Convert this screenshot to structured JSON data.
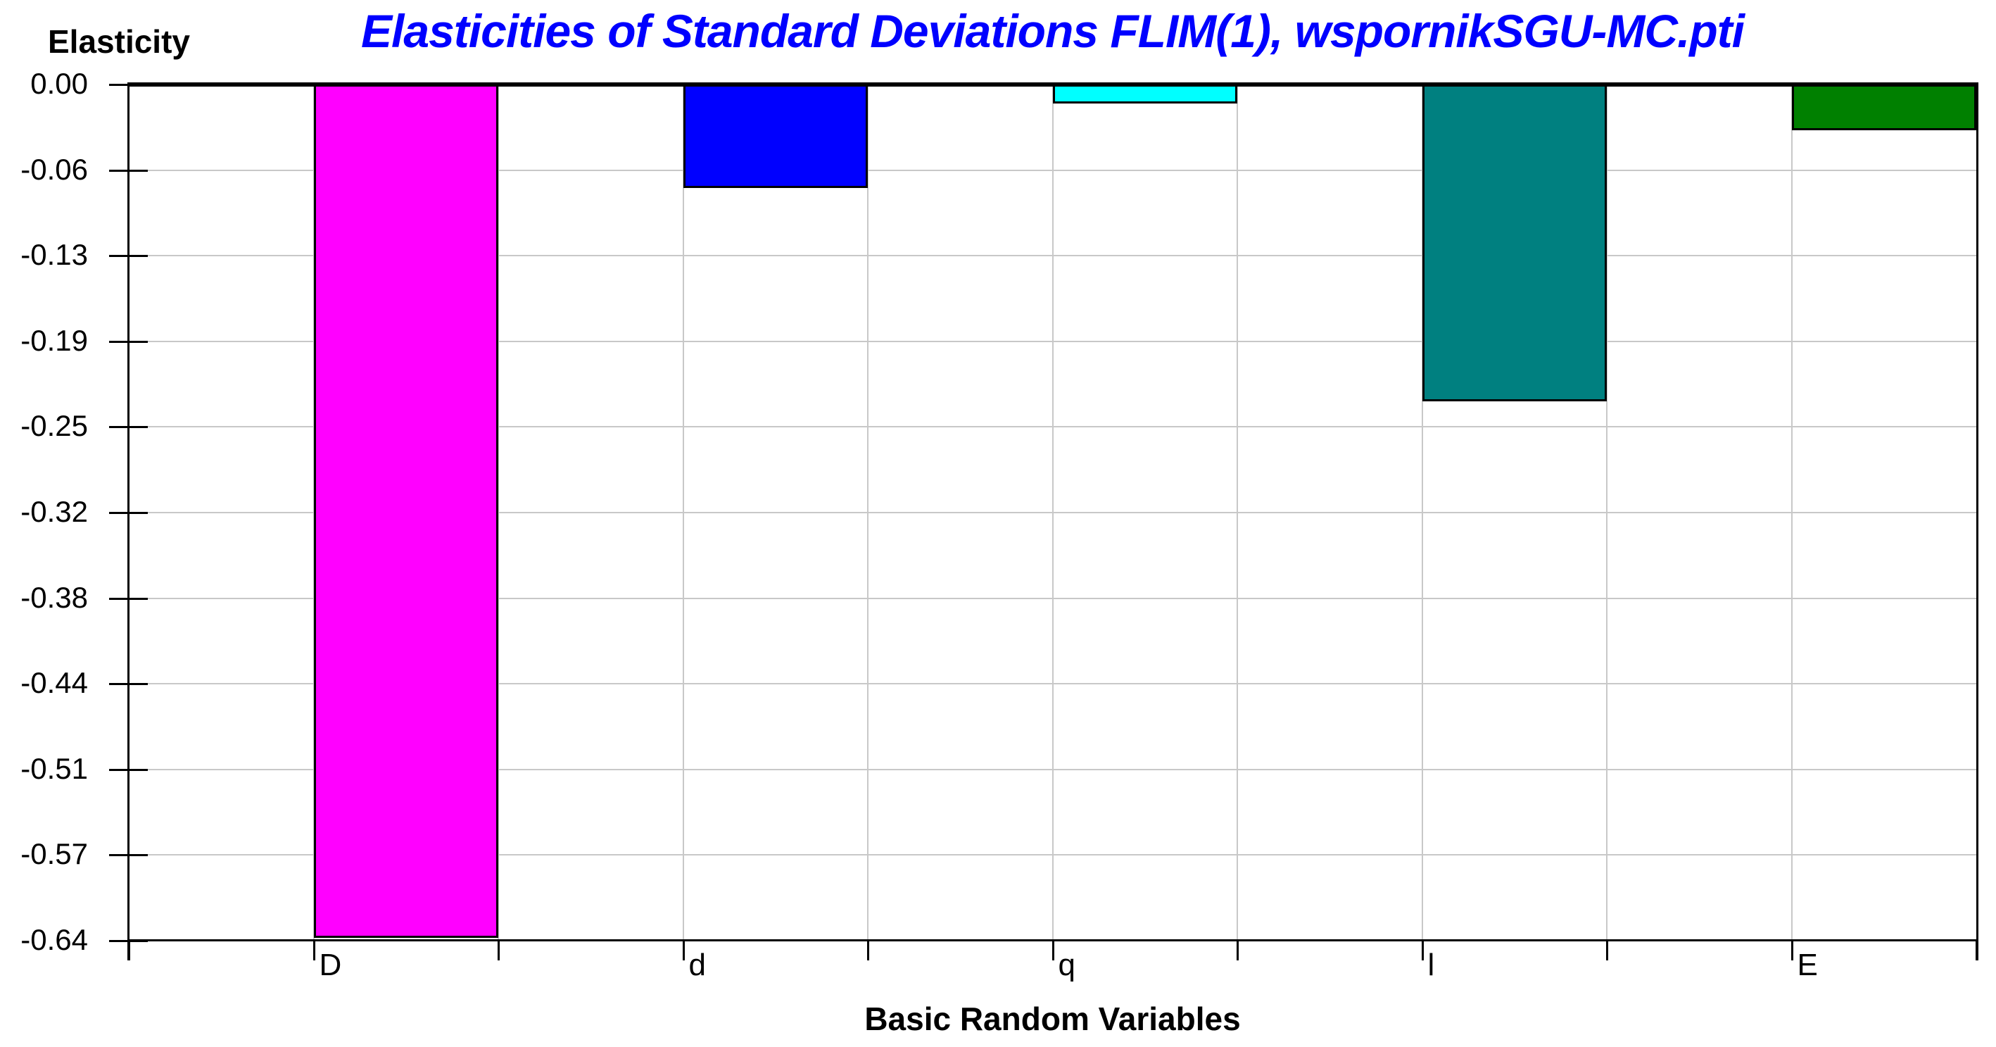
{
  "header": {
    "title": "Elasticities of Standard Deviations FLIM(1), wspornikSGU-MC.pti",
    "title_color": "#0000ff"
  },
  "chart_data": {
    "type": "bar",
    "title": "Elasticities of Standard Deviations FLIM(1), wspornikSGU-MC.pti",
    "xlabel": "Basic Random Variables",
    "ylabel": "Elasticity",
    "categories": [
      "D",
      "d",
      "q",
      "l",
      "E"
    ],
    "values": [
      -0.633,
      -0.077,
      -0.014,
      -0.235,
      -0.034
    ],
    "bar_colors": [
      "#ff00ff",
      "#0000ff",
      "#00ffff",
      "#008080",
      "#008000"
    ],
    "y_tick_labels": [
      "0.00",
      "-0.06",
      "-0.13",
      "-0.19",
      "-0.25",
      "-0.32",
      "-0.38",
      "-0.44",
      "-0.51",
      "-0.57",
      "-0.64"
    ],
    "ylim": [
      -0.635,
      0
    ],
    "grid": true,
    "legend_position": "none",
    "layout": {
      "slots_per_category": 2,
      "bars_offset_slots": 1,
      "gridline_color": "#c8c8c8",
      "axis_color": "#000000",
      "background": "#ffffff"
    }
  }
}
